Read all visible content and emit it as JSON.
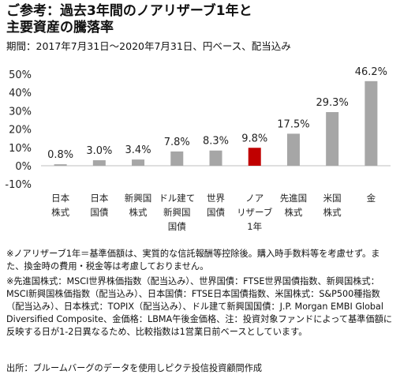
{
  "title_line1": "ご参考：過去3年間のノアリザーブ1年と",
  "title_line2": "主要資産の騰落率",
  "period": "期間：2017年7月31日～2020年7月31日、円ベース、配当込み",
  "chart_data": {
    "type": "bar",
    "categories": [
      [
        "日本",
        "株式"
      ],
      [
        "日本",
        "国債"
      ],
      [
        "新興国",
        "株式"
      ],
      [
        "ドル建て",
        "新興国",
        "国債"
      ],
      [
        "世界",
        "国債"
      ],
      [
        "ノア",
        "リザーブ",
        "1年"
      ],
      [
        "先進国",
        "株式"
      ],
      [
        "米国",
        "株式"
      ],
      [
        "金"
      ]
    ],
    "values": [
      0.8,
      3.0,
      3.4,
      7.8,
      8.3,
      9.8,
      17.5,
      29.3,
      46.2
    ],
    "value_labels": [
      "0.8%",
      "3.0%",
      "3.4%",
      "7.8%",
      "8.3%",
      "9.8%",
      "17.5%",
      "29.3%",
      "46.2%"
    ],
    "highlight_index": 5,
    "yticks": [
      50,
      40,
      30,
      20,
      10,
      0,
      -10
    ],
    "ytick_labels": [
      "50%",
      "40%",
      "30%",
      "20%",
      "10%",
      "0%",
      "-10%"
    ],
    "ylim": [
      -10,
      50
    ],
    "grid": false,
    "colors": {
      "bar": "#a6a6a6",
      "highlight": "#c00000",
      "axis": "#bfbfbf"
    }
  },
  "notes": {
    "line1": "※ノアリザーブ1年＝基準価額は、実質的な信託報酬等控除後。購入時手数料等を考慮せず。また、換金時の費用・税金等は考慮しておりません。",
    "line2": "※先進国株式：MSCI世界株価指数（配当込み）、世界国債：FTSE世界国債指数、新興国株式：MSCI新興国株価指数（配当込み）、日本国債：FTSE日本国債指数、米国株式：S&P500種指数（配当込み）、日本株式：TOPIX（配当込み）、ドル建て新興国国債：J.P. Morgan EMBI Global Diversified Composite、金価格：LBMA午後金価格、注：投資対象ファンドによって基準価額に反映する日が1-2日異なるため、比較指数は1営業日前ベースとしています。",
    "line3": "出所：ブルームバーグのデータを使用しピクテ投信投資顧問作成"
  }
}
